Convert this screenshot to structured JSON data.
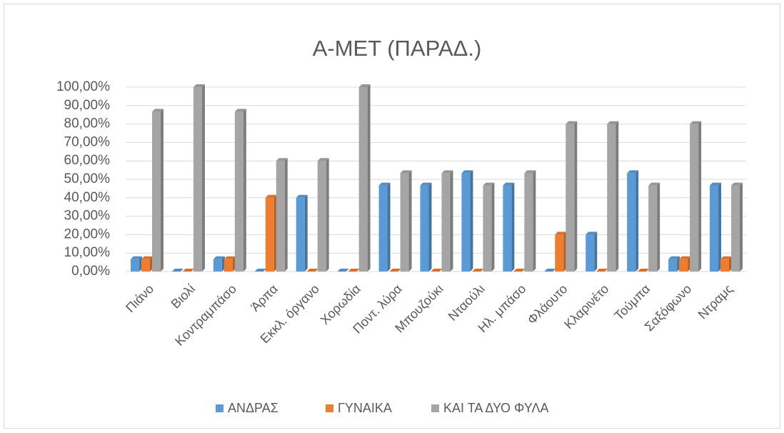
{
  "chart_data": {
    "type": "bar",
    "title": "Α-ΜΕΤ (ΠΑΡΑΔ.)",
    "categories": [
      "Πιάνο",
      "Βιολί",
      "Κοντραμπάσο",
      "Άρπα",
      "Εκκλ. όργανο",
      "Χορωδία",
      "Ποντ. λύρα",
      "Μπουζούκι",
      "Νταούλι",
      "Ηλ. μπάσο",
      "Φλάουτο",
      "Κλαρινέτο",
      "Τούμπα",
      "Σαξόφωνο",
      "Ντραμς"
    ],
    "series": [
      {
        "name": "ΑΝΔΡΑΣ",
        "color": "#5b9bd5",
        "values": [
          6.67,
          0,
          6.67,
          0,
          40,
          0,
          46.67,
          46.67,
          53.33,
          46.67,
          0,
          20,
          53.33,
          6.67,
          46.67
        ]
      },
      {
        "name": "ΓΥΝΑΙΚΑ",
        "color": "#ed7d31",
        "values": [
          6.67,
          0,
          6.67,
          40,
          0,
          0,
          0,
          0,
          0,
          0,
          20,
          0,
          0,
          6.67,
          6.67
        ]
      },
      {
        "name": "ΚΑΙ ΤΑ ΔΥΟ ΦΥΛΑ",
        "color": "#a5a5a5",
        "values": [
          86.67,
          100,
          86.67,
          60,
          60,
          100,
          53.33,
          53.33,
          46.67,
          53.33,
          80,
          80,
          46.67,
          80,
          46.67
        ]
      }
    ],
    "ylim": [
      0,
      100
    ],
    "yticks": [
      {
        "value": 0,
        "label": "0,00%"
      },
      {
        "value": 10,
        "label": "10,00%"
      },
      {
        "value": 20,
        "label": "20,00%"
      },
      {
        "value": 30,
        "label": "30,00%"
      },
      {
        "value": 40,
        "label": "40,00%"
      },
      {
        "value": 50,
        "label": "50,00%"
      },
      {
        "value": 60,
        "label": "60,00%"
      },
      {
        "value": 70,
        "label": "70,00%"
      },
      {
        "value": 80,
        "label": "80,00%"
      },
      {
        "value": 90,
        "label": "90,00%"
      },
      {
        "value": 100,
        "label": "100,00%"
      }
    ],
    "grid": true,
    "legend": "bottom"
  }
}
